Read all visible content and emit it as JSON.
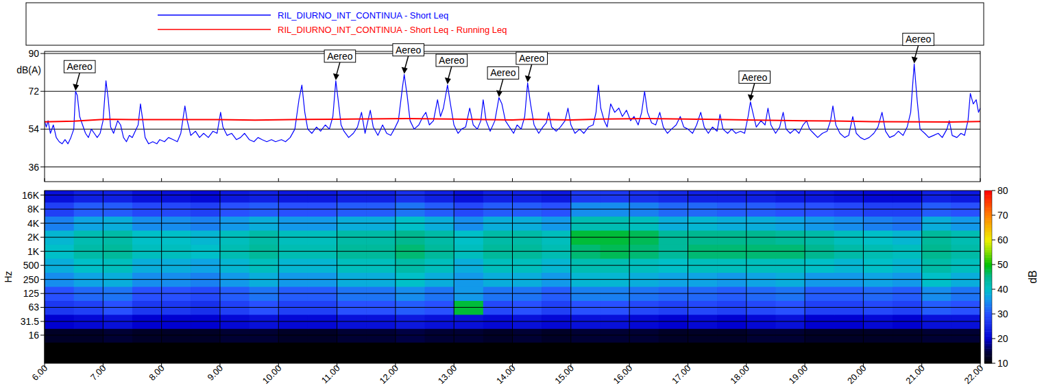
{
  "chart_data": [
    {
      "type": "line",
      "y_label": "dB(A)",
      "xlim": [
        6,
        22
      ],
      "xticks": [
        6,
        7,
        8,
        9,
        10,
        11,
        12,
        13,
        14,
        15,
        16,
        17,
        18,
        19,
        20,
        21,
        22
      ],
      "ylim": [
        29,
        91
      ],
      "yticks": [
        36,
        54,
        72,
        90
      ],
      "grid": "y",
      "tick_labels": "y",
      "legend": "top",
      "series": [
        {
          "name": "RIL_DIURNO_INT_CONTINUA - Short Leq",
          "color": "#0000ff",
          "x": [
            6.0,
            6.03,
            6.06,
            6.1,
            6.15,
            6.2,
            6.25,
            6.3,
            6.35,
            6.4,
            6.45,
            6.5,
            6.53,
            6.56,
            6.6,
            6.65,
            6.7,
            6.75,
            6.8,
            6.85,
            6.9,
            6.95,
            7.0,
            7.05,
            7.09,
            7.13,
            7.18,
            7.25,
            7.3,
            7.35,
            7.4,
            7.45,
            7.5,
            7.55,
            7.6,
            7.64,
            7.68,
            7.72,
            7.78,
            7.85,
            7.92,
            7.97,
            8.05,
            8.12,
            8.2,
            8.27,
            8.33,
            8.4,
            8.44,
            8.5,
            8.58,
            8.65,
            8.72,
            8.8,
            8.88,
            8.95,
            9.01,
            9.05,
            9.12,
            9.2,
            9.28,
            9.35,
            9.42,
            9.5,
            9.58,
            9.65,
            9.72,
            9.8,
            9.88,
            9.95,
            10.05,
            10.12,
            10.2,
            10.28,
            10.35,
            10.4,
            10.45,
            10.5,
            10.57,
            10.65,
            10.72,
            10.8,
            10.87,
            10.93,
            10.98,
            11.02,
            11.07,
            11.12,
            11.2,
            11.28,
            11.35,
            11.42,
            11.48,
            11.57,
            11.62,
            11.7,
            11.78,
            11.85,
            11.92,
            11.98,
            12.05,
            12.12,
            12.15,
            12.2,
            12.25,
            12.32,
            12.4,
            12.47,
            12.52,
            12.58,
            12.65,
            12.72,
            12.77,
            12.82,
            12.89,
            12.94,
            13.0,
            13.07,
            13.13,
            13.2,
            13.27,
            13.33,
            13.4,
            13.46,
            13.5,
            13.55,
            13.62,
            13.7,
            13.77,
            13.82,
            13.88,
            13.95,
            14.02,
            14.08,
            14.15,
            14.21,
            14.26,
            14.31,
            14.37,
            14.45,
            14.52,
            14.58,
            14.62,
            14.67,
            14.75,
            14.82,
            14.9,
            14.95,
            15.0,
            15.07,
            15.15,
            15.22,
            15.3,
            15.38,
            15.43,
            15.47,
            15.51,
            15.57,
            15.62,
            15.68,
            15.75,
            15.82,
            15.88,
            15.95,
            16.02,
            16.08,
            16.15,
            16.21,
            16.26,
            16.31,
            16.38,
            16.45,
            16.52,
            16.58,
            16.65,
            16.72,
            16.8,
            16.87,
            16.93,
            17.0,
            17.08,
            17.15,
            17.22,
            17.28,
            17.35,
            17.42,
            17.5,
            17.55,
            17.6,
            17.68,
            17.75,
            17.82,
            17.9,
            17.97,
            18.03,
            18.07,
            18.11,
            18.17,
            18.25,
            18.32,
            18.37,
            18.42,
            18.5,
            18.57,
            18.63,
            18.68,
            18.75,
            18.83,
            18.9,
            18.97,
            19.03,
            19.08,
            19.15,
            19.22,
            19.3,
            19.38,
            19.44,
            19.48,
            19.53,
            19.6,
            19.68,
            19.75,
            19.82,
            19.88,
            19.95,
            20.02,
            20.1,
            20.18,
            20.25,
            20.32,
            20.38,
            20.45,
            20.53,
            20.6,
            20.68,
            20.75,
            20.81,
            20.87,
            20.92,
            20.97,
            21.05,
            21.12,
            21.2,
            21.28,
            21.35,
            21.43,
            21.47,
            21.52,
            21.6,
            21.67,
            21.73,
            21.79,
            21.83,
            21.88,
            21.93,
            21.97,
            22.0
          ],
          "values": [
            58,
            55,
            58,
            52,
            56,
            50,
            48,
            47,
            49,
            47,
            50,
            54,
            72,
            70,
            60,
            56,
            52,
            50,
            54,
            52,
            50,
            52,
            58,
            77,
            68,
            55,
            52,
            58,
            56,
            50,
            48,
            51,
            50,
            53,
            56,
            66,
            58,
            50,
            47,
            48,
            47,
            49,
            48,
            50,
            49,
            48,
            52,
            65,
            58,
            51,
            53,
            50,
            52,
            50,
            53,
            52,
            62,
            55,
            51,
            52,
            49,
            50,
            52,
            49,
            48,
            50,
            49,
            48,
            49,
            48,
            49,
            48,
            50,
            54,
            68,
            75,
            62,
            54,
            52,
            55,
            53,
            56,
            54,
            60,
            77,
            68,
            56,
            53,
            50,
            52,
            55,
            62,
            52,
            63,
            55,
            51,
            56,
            52,
            51,
            54,
            58,
            74,
            80,
            70,
            58,
            54,
            56,
            60,
            62,
            56,
            58,
            68,
            60,
            64,
            75,
            66,
            56,
            52,
            54,
            55,
            64,
            56,
            54,
            58,
            68,
            58,
            53,
            58,
            69,
            66,
            58,
            55,
            52,
            56,
            54,
            60,
            76,
            66,
            56,
            52,
            55,
            57,
            62,
            55,
            53,
            55,
            58,
            64,
            56,
            52,
            54,
            52,
            55,
            56,
            62,
            75,
            64,
            58,
            55,
            66,
            62,
            64,
            60,
            63,
            58,
            60,
            56,
            62,
            72,
            62,
            57,
            56,
            62,
            55,
            52,
            54,
            56,
            60,
            55,
            54,
            52,
            56,
            62,
            55,
            52,
            55,
            53,
            61,
            54,
            52,
            54,
            52,
            53,
            52,
            60,
            67,
            62,
            55,
            58,
            56,
            64,
            56,
            52,
            55,
            62,
            54,
            52,
            54,
            52,
            56,
            58,
            54,
            52,
            50,
            52,
            53,
            58,
            65,
            56,
            52,
            50,
            51,
            60,
            52,
            50,
            49,
            50,
            52,
            55,
            62,
            53,
            50,
            51,
            53,
            51,
            55,
            62,
            85,
            68,
            54,
            52,
            50,
            51,
            52,
            50,
            54,
            58,
            51,
            50,
            52,
            51,
            58,
            71,
            66,
            68,
            62,
            64
          ]
        },
        {
          "name": "RIL_DIURNO_INT_CONTINUA - Short Leq - Running Leq",
          "color": "#ff0000",
          "x": [
            6.0,
            6.5,
            7.05,
            7.5,
            8.0,
            9.0,
            9.6,
            10.4,
            11.0,
            12.2,
            13.0,
            14.0,
            14.3,
            15.0,
            15.5,
            16.3,
            17.0,
            18.0,
            19.0,
            19.5,
            20.0,
            20.9,
            21.5,
            22.0
          ],
          "values": [
            57.5,
            57.8,
            58.7,
            58.5,
            58.5,
            58.5,
            58.3,
            58.6,
            58.7,
            59.0,
            58.8,
            58.4,
            58.7,
            58.4,
            58.8,
            59.0,
            58.8,
            58.4,
            58.0,
            57.9,
            57.6,
            57.5,
            57.4,
            57.6
          ]
        }
      ],
      "annotations": [
        {
          "text": "Aereo",
          "x": 6.53,
          "y": 72
        },
        {
          "text": "Aereo",
          "x": 10.98,
          "y": 77
        },
        {
          "text": "Aereo",
          "x": 12.15,
          "y": 80
        },
        {
          "text": "Aereo",
          "x": 12.89,
          "y": 75
        },
        {
          "text": "Aereo",
          "x": 13.77,
          "y": 69
        },
        {
          "text": "Aereo",
          "x": 14.26,
          "y": 76
        },
        {
          "text": "Aereo",
          "x": 18.07,
          "y": 67
        },
        {
          "text": "Aereo",
          "x": 20.87,
          "y": 85
        }
      ]
    },
    {
      "type": "heatmap",
      "y_label": "Hz",
      "x": [
        6.0,
        6.5,
        7.0,
        7.5,
        8.0,
        8.5,
        9.0,
        9.5,
        10.0,
        10.5,
        11.0,
        11.5,
        12.0,
        12.5,
        13.0,
        13.5,
        14.0,
        14.5,
        15.0,
        15.5,
        16.0,
        16.5,
        17.0,
        17.5,
        18.0,
        18.5,
        19.0,
        19.5,
        20.0,
        20.5,
        21.0,
        21.5
      ],
      "y": [
        16,
        31.5,
        63,
        125,
        250,
        500,
        1000,
        2000,
        4000,
        8000,
        16000
      ],
      "cells": [
        [
          13,
          13,
          14,
          13,
          13,
          13,
          14,
          14,
          13,
          13,
          14,
          14,
          15,
          14,
          14,
          13,
          14,
          13,
          14,
          14,
          14,
          13,
          13,
          13,
          14,
          14,
          13,
          13,
          13,
          13,
          14,
          14
        ],
        [
          20,
          21,
          22,
          20,
          20,
          20,
          21,
          22,
          21,
          21,
          22,
          22,
          23,
          22,
          22,
          21,
          22,
          21,
          22,
          22,
          21,
          20,
          21,
          20,
          21,
          22,
          20,
          20,
          21,
          20,
          22,
          22
        ],
        [
          27,
          28,
          30,
          27,
          27,
          26,
          28,
          30,
          28,
          28,
          30,
          30,
          31,
          30,
          48,
          29,
          30,
          28,
          30,
          30,
          29,
          28,
          29,
          28,
          29,
          30,
          28,
          28,
          29,
          28,
          31,
          30
        ],
        [
          30,
          32,
          33,
          30,
          30,
          29,
          31,
          33,
          31,
          31,
          33,
          33,
          35,
          33,
          36,
          33,
          33,
          31,
          34,
          34,
          33,
          32,
          32,
          31,
          32,
          33,
          31,
          31,
          32,
          31,
          35,
          33
        ],
        [
          35,
          37,
          38,
          35,
          35,
          34,
          36,
          38,
          36,
          36,
          38,
          38,
          40,
          38,
          36,
          38,
          38,
          36,
          39,
          39,
          38,
          37,
          37,
          36,
          37,
          38,
          36,
          36,
          37,
          36,
          40,
          38
        ],
        [
          38,
          40,
          41,
          38,
          38,
          37,
          39,
          41,
          39,
          39,
          41,
          41,
          43,
          41,
          38,
          41,
          41,
          39,
          42,
          42,
          41,
          40,
          41,
          41,
          41,
          41,
          40,
          39,
          40,
          39,
          43,
          41
        ],
        [
          40,
          43,
          44,
          41,
          41,
          40,
          42,
          44,
          42,
          42,
          44,
          44,
          46,
          44,
          41,
          44,
          44,
          42,
          46,
          47,
          46,
          44,
          46,
          46,
          46,
          46,
          45,
          43,
          42,
          41,
          45,
          43
        ],
        [
          39,
          42,
          43,
          40,
          40,
          39,
          41,
          43,
          41,
          41,
          43,
          43,
          45,
          43,
          40,
          43,
          43,
          41,
          48,
          48,
          47,
          44,
          45,
          45,
          45,
          44,
          43,
          41,
          40,
          39,
          44,
          42
        ],
        [
          34,
          37,
          38,
          35,
          35,
          34,
          36,
          38,
          36,
          36,
          38,
          38,
          40,
          38,
          35,
          38,
          38,
          36,
          42,
          42,
          41,
          38,
          39,
          38,
          38,
          37,
          36,
          35,
          34,
          33,
          38,
          36
        ],
        [
          28,
          31,
          31,
          29,
          29,
          28,
          30,
          31,
          30,
          30,
          31,
          31,
          33,
          31,
          29,
          31,
          31,
          30,
          35,
          35,
          34,
          32,
          32,
          31,
          31,
          30,
          30,
          29,
          28,
          28,
          31,
          30
        ],
        [
          22,
          24,
          24,
          22,
          22,
          21,
          23,
          24,
          23,
          23,
          24,
          24,
          26,
          24,
          22,
          24,
          24,
          23,
          27,
          27,
          26,
          25,
          24,
          24,
          24,
          23,
          23,
          22,
          21,
          21,
          24,
          23
        ]
      ],
      "xlim": [
        6,
        22
      ],
      "xticks": [
        {
          "value": 6,
          "label": "6.00"
        },
        {
          "value": 7,
          "label": "7.00"
        },
        {
          "value": 8,
          "label": "8.00"
        },
        {
          "value": 9,
          "label": "9.00"
        },
        {
          "value": 10,
          "label": "10.00"
        },
        {
          "value": 11,
          "label": "11.00"
        },
        {
          "value": 12,
          "label": "12.00"
        },
        {
          "value": 13,
          "label": "13.00"
        },
        {
          "value": 14,
          "label": "14.00"
        },
        {
          "value": 15,
          "label": "15.00"
        },
        {
          "value": 16,
          "label": "16.00"
        },
        {
          "value": 17,
          "label": "17.00"
        },
        {
          "value": 18,
          "label": "18.00"
        },
        {
          "value": 19,
          "label": "19.00"
        },
        {
          "value": 20,
          "label": "20.00"
        },
        {
          "value": 21,
          "label": "21.00"
        },
        {
          "value": 22,
          "label": "22.00"
        }
      ],
      "ylim": [
        4,
        20000
      ],
      "yticks": [
        16,
        31.5,
        63,
        125,
        250,
        500,
        {
          "value": 1000,
          "label": "1K"
        },
        {
          "value": 2000,
          "label": "2K"
        },
        {
          "value": 4000,
          "label": "4K"
        },
        {
          "value": 8000,
          "label": "8K"
        },
        {
          "value": 16000,
          "label": "16K"
        }
      ],
      "log": "y",
      "grid": true,
      "color_range": [
        10,
        80
      ],
      "color_ticks": [
        10,
        20,
        30,
        40,
        50,
        60,
        70,
        80
      ],
      "color_label": "dB"
    }
  ]
}
